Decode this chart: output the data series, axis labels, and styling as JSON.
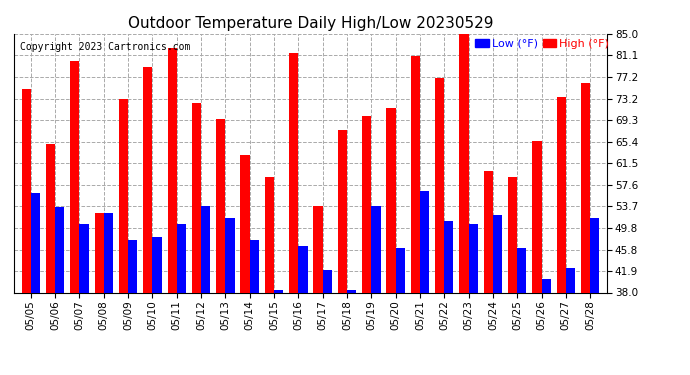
{
  "title": "Outdoor Temperature Daily High/Low 20230529",
  "copyright": "Copyright 2023 Cartronics.com",
  "legend_low": "Low (°F)",
  "legend_high": "High (°F)",
  "dates": [
    "05/05",
    "05/06",
    "05/07",
    "05/08",
    "05/09",
    "05/10",
    "05/11",
    "05/12",
    "05/13",
    "05/14",
    "05/15",
    "05/16",
    "05/17",
    "05/18",
    "05/19",
    "05/20",
    "05/21",
    "05/22",
    "05/23",
    "05/24",
    "05/25",
    "05/26",
    "05/27",
    "05/28"
  ],
  "highs": [
    75.0,
    65.0,
    80.0,
    52.5,
    73.2,
    79.0,
    82.5,
    72.5,
    69.5,
    63.0,
    59.0,
    81.5,
    53.7,
    67.5,
    70.0,
    71.5,
    81.0,
    77.0,
    85.0,
    60.0,
    59.0,
    65.5,
    73.5,
    76.0
  ],
  "lows": [
    56.0,
    53.5,
    50.5,
    52.5,
    47.5,
    48.0,
    50.5,
    53.7,
    51.5,
    47.5,
    38.5,
    46.5,
    42.0,
    38.5,
    53.7,
    46.0,
    56.5,
    51.0,
    50.5,
    52.0,
    46.0,
    40.5,
    42.5,
    51.5
  ],
  "y_ticks": [
    38.0,
    41.9,
    45.8,
    49.8,
    53.7,
    57.6,
    61.5,
    65.4,
    69.3,
    73.2,
    77.2,
    81.1,
    85.0
  ],
  "ymin": 38.0,
  "ymax": 85.0,
  "high_color": "#ff0000",
  "low_color": "#0000ff",
  "bg_color": "#ffffff",
  "grid_color": "#aaaaaa",
  "bar_width": 0.38,
  "title_fontsize": 11,
  "copyright_fontsize": 7,
  "tick_fontsize": 7.5,
  "legend_fontsize": 8
}
